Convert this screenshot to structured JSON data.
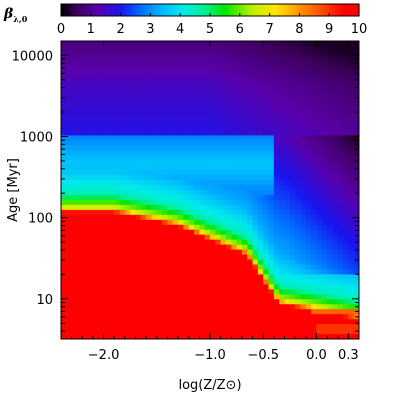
{
  "chart_data": {
    "type": "heatmap",
    "title": "",
    "xlabel": "log(Z/Z⊙)",
    "ylabel": "Age [Myr]",
    "x_scale": "linear",
    "y_scale": "log",
    "xlim": [
      -2.4,
      0.4
    ],
    "ylim": [
      3.2,
      15000
    ],
    "x_ticks": [
      {
        "value": -2.0,
        "label": "−2.0"
      },
      {
        "value": -1.0,
        "label": "−1.0"
      },
      {
        "value": -0.5,
        "label": "−0.5"
      },
      {
        "value": 0.0,
        "label": "0.0"
      },
      {
        "value": 0.3,
        "label": "0.3"
      }
    ],
    "y_ticks": [
      {
        "value": 10,
        "label": "10"
      },
      {
        "value": 100,
        "label": "100"
      },
      {
        "value": 1000,
        "label": "1000"
      },
      {
        "value": 10000,
        "label": "10000"
      }
    ],
    "colorbar": {
      "label": "β",
      "label_subscript": "λ,0",
      "range": [
        0,
        10
      ],
      "ticks": [
        "0",
        "1",
        "2",
        "3",
        "4",
        "5",
        "6",
        "7",
        "8",
        "9",
        "10"
      ],
      "colormap": "rainbow (black–purple–blue–cyan–green–yellow–red)",
      "position": "top"
    }
  }
}
